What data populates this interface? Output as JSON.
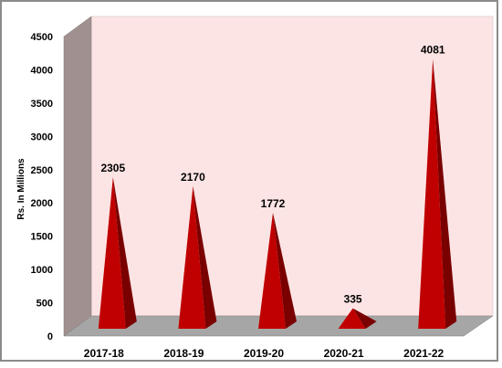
{
  "chart_data": {
    "type": "bar",
    "shape": "pyramid",
    "categories": [
      "2017-18",
      "2018-19",
      "2019-20",
      "2020-21",
      "2021-22"
    ],
    "values": [
      2305,
      2170,
      1772,
      335,
      4081
    ],
    "data_labels": [
      "2305",
      "2170",
      "1772",
      "335",
      "4081"
    ],
    "ylabel": "Rs. In Millions",
    "xlabel": "",
    "ylim": [
      0,
      4500
    ],
    "yticks": [
      0,
      500,
      1000,
      1500,
      2000,
      2500,
      3000,
      3500,
      4000,
      4500
    ],
    "grid": false,
    "legend": "none",
    "colors": {
      "bar": "#c00000",
      "bar_dark": "#7a0000",
      "back_wall": "#fde4e4",
      "side_wall": "#a09090",
      "floor": "#a6a6a6"
    }
  }
}
